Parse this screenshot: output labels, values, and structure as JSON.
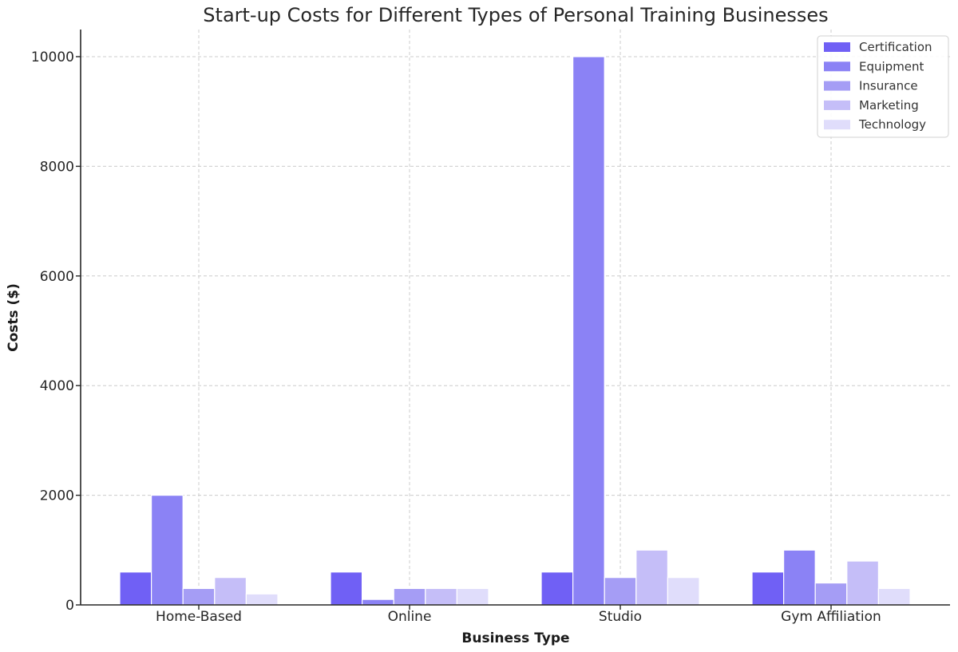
{
  "chart_data": {
    "type": "bar",
    "title": "Start-up Costs for Different Types of Personal Training Businesses",
    "xlabel": "Business Type",
    "ylabel": "Costs ($)",
    "categories": [
      "Home-Based",
      "Online",
      "Studio",
      "Gym Affiliation"
    ],
    "series": [
      {
        "name": "Certification",
        "color": "#7060f5",
        "values": [
          600,
          600,
          600,
          600
        ]
      },
      {
        "name": "Equipment",
        "color": "#8b82f5",
        "values": [
          2000,
          100,
          10000,
          1000
        ]
      },
      {
        "name": "Insurance",
        "color": "#a59df5",
        "values": [
          300,
          300,
          500,
          400
        ]
      },
      {
        "name": "Marketing",
        "color": "#c5bef8",
        "values": [
          500,
          300,
          1000,
          800
        ]
      },
      {
        "name": "Technology",
        "color": "#e0ddfb",
        "values": [
          200,
          300,
          500,
          300
        ]
      }
    ],
    "yticks": [
      0,
      2000,
      4000,
      6000,
      8000,
      10000
    ],
    "ylim": [
      0,
      10500
    ],
    "grid": true,
    "legend_position": "upper right"
  }
}
